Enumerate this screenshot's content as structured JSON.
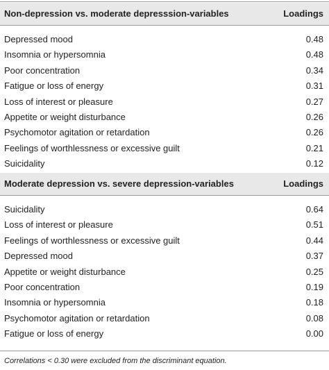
{
  "sections": [
    {
      "header": {
        "variable": "Non-depression vs. moderate depresssion-variables",
        "loadings": "Loadings"
      },
      "rows": [
        [
          "Depressed mood",
          "0.48"
        ],
        [
          "Insomnia or hypersomnia",
          "0.48"
        ],
        [
          "Poor concentration",
          "0.34"
        ],
        [
          "Fatigue or loss of energy",
          "0.31"
        ],
        [
          "Loss of interest or pleasure",
          "0.27"
        ],
        [
          "Appetite or weight disturbance",
          "0.26"
        ],
        [
          "Psychomotor agitation or retardation",
          "0.26"
        ],
        [
          "Feelings of worthlessness or excessive guilt",
          "0.21"
        ],
        [
          "Suicidality",
          "0.12"
        ]
      ]
    },
    {
      "header": {
        "variable": "Moderate depression vs. severe depression-variables",
        "loadings": "Loadings"
      },
      "rows": [
        [
          "Suicidality",
          "0.64"
        ],
        [
          "Loss of interest or pleasure",
          "0.51"
        ],
        [
          "Feelings of worthlessness or excessive guilt",
          "0.44"
        ],
        [
          "Depressed mood",
          "0.37"
        ],
        [
          "Appetite or weight disturbance",
          "0.25"
        ],
        [
          "Poor concentration",
          "0.19"
        ],
        [
          "Insomnia or hypersomnia",
          "0.18"
        ],
        [
          "Psychomotor agitation or retardation",
          "0.08"
        ],
        [
          "Fatigue or loss of energy",
          "0.00"
        ]
      ]
    }
  ],
  "footnote": "Correlations < 0.30 were excluded from the discriminant equation."
}
